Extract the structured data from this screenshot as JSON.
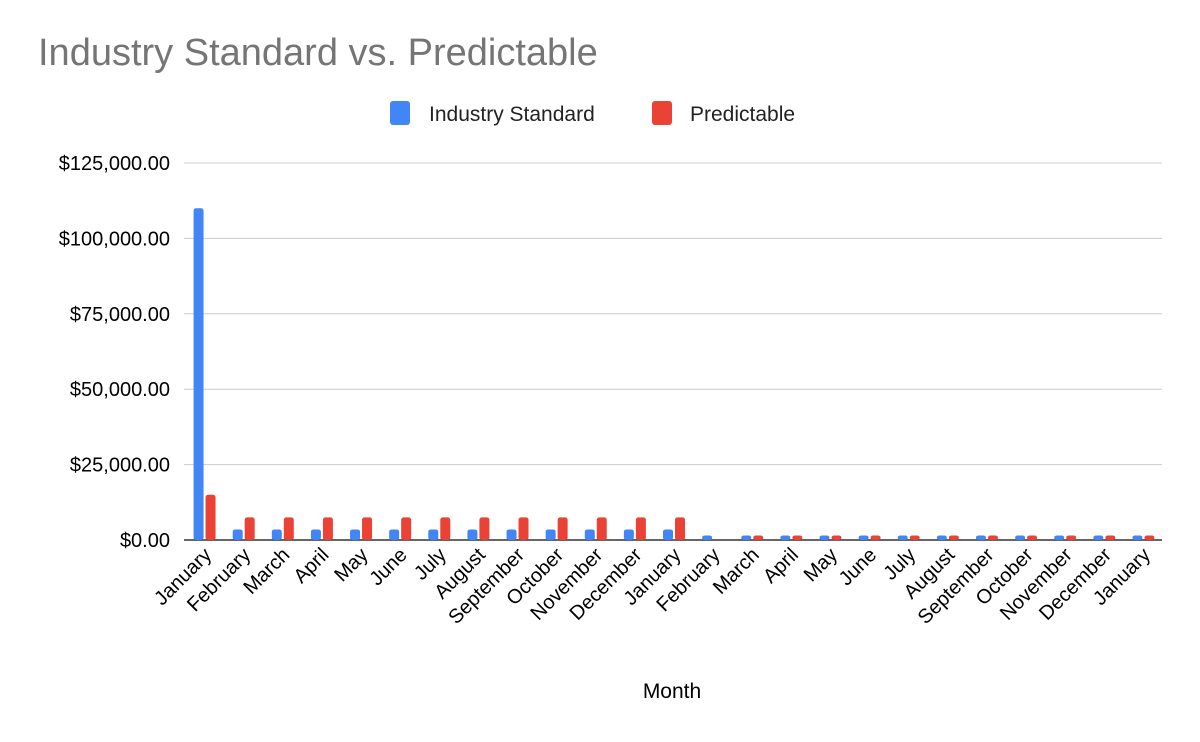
{
  "chart_data": {
    "type": "bar",
    "title": "Industry Standard vs. Predictable",
    "xlabel": "Month",
    "ylabel": "",
    "ylim": [
      0,
      125000
    ],
    "yticks": [
      "$0.00",
      "$25,000.00",
      "$50,000.00",
      "$75,000.00",
      "$100,000.00",
      "$125,000.00"
    ],
    "ytick_values": [
      0,
      25000,
      50000,
      75000,
      100000,
      125000
    ],
    "grid": true,
    "legend_position": "top-center",
    "categories": [
      "January",
      "February",
      "March",
      "April",
      "May",
      "June",
      "July",
      "August",
      "September",
      "October",
      "November",
      "December",
      "January",
      "February",
      "March",
      "April",
      "May",
      "June",
      "July",
      "August",
      "September",
      "October",
      "November",
      "December",
      "January"
    ],
    "series": [
      {
        "name": "Industry Standard",
        "color": "#4285f4",
        "values": [
          110000,
          3500,
          3500,
          3500,
          3500,
          3500,
          3500,
          3500,
          3500,
          3500,
          3500,
          3500,
          3500,
          1500,
          1500,
          1500,
          1500,
          1500,
          1500,
          1500,
          1500,
          1500,
          1500,
          1500,
          1500
        ]
      },
      {
        "name": "Predictable",
        "color": "#ea4335",
        "values": [
          15000,
          7500,
          7500,
          7500,
          7500,
          7500,
          7500,
          7500,
          7500,
          7500,
          7500,
          7500,
          7500,
          0,
          1500,
          1500,
          1500,
          1500,
          1500,
          1500,
          1500,
          1500,
          1500,
          1500,
          1500
        ]
      }
    ]
  }
}
